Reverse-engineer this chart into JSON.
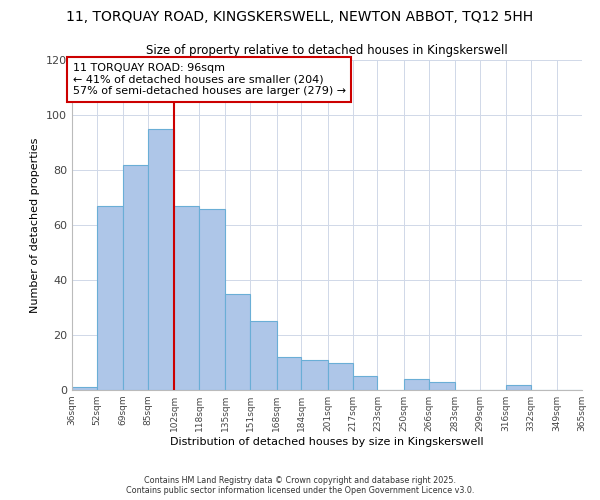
{
  "title": "11, TORQUAY ROAD, KINGSKERSWELL, NEWTON ABBOT, TQ12 5HH",
  "subtitle": "Size of property relative to detached houses in Kingskerswell",
  "xlabel": "Distribution of detached houses by size in Kingskerswell",
  "ylabel": "Number of detached properties",
  "bins": [
    36,
    52,
    69,
    85,
    102,
    118,
    135,
    151,
    168,
    184,
    201,
    217,
    233,
    250,
    266,
    283,
    299,
    316,
    332,
    349,
    365
  ],
  "bin_labels": [
    "36sqm",
    "52sqm",
    "69sqm",
    "85sqm",
    "102sqm",
    "118sqm",
    "135sqm",
    "151sqm",
    "168sqm",
    "184sqm",
    "201sqm",
    "217sqm",
    "233sqm",
    "250sqm",
    "266sqm",
    "283sqm",
    "299sqm",
    "316sqm",
    "332sqm",
    "349sqm",
    "365sqm"
  ],
  "counts": [
    1,
    67,
    82,
    95,
    67,
    66,
    35,
    25,
    12,
    11,
    10,
    5,
    0,
    4,
    3,
    0,
    0,
    2,
    0,
    0
  ],
  "bar_color": "#aec6e8",
  "bar_edge_color": "#6aaed6",
  "property_bin": 102,
  "annotation_line1": "11 TORQUAY ROAD: 96sqm",
  "annotation_line2": "← 41% of detached houses are smaller (204)",
  "annotation_line3": "57% of semi-detached houses are larger (279) →",
  "vline_color": "#cc0000",
  "annotation_box_edgecolor": "#cc0000",
  "ylim": [
    0,
    120
  ],
  "yticks": [
    0,
    20,
    40,
    60,
    80,
    100,
    120
  ],
  "footer_line1": "Contains HM Land Registry data © Crown copyright and database right 2025.",
  "footer_line2": "Contains public sector information licensed under the Open Government Licence v3.0.",
  "background_color": "#ffffff",
  "grid_color": "#d0d8e8"
}
